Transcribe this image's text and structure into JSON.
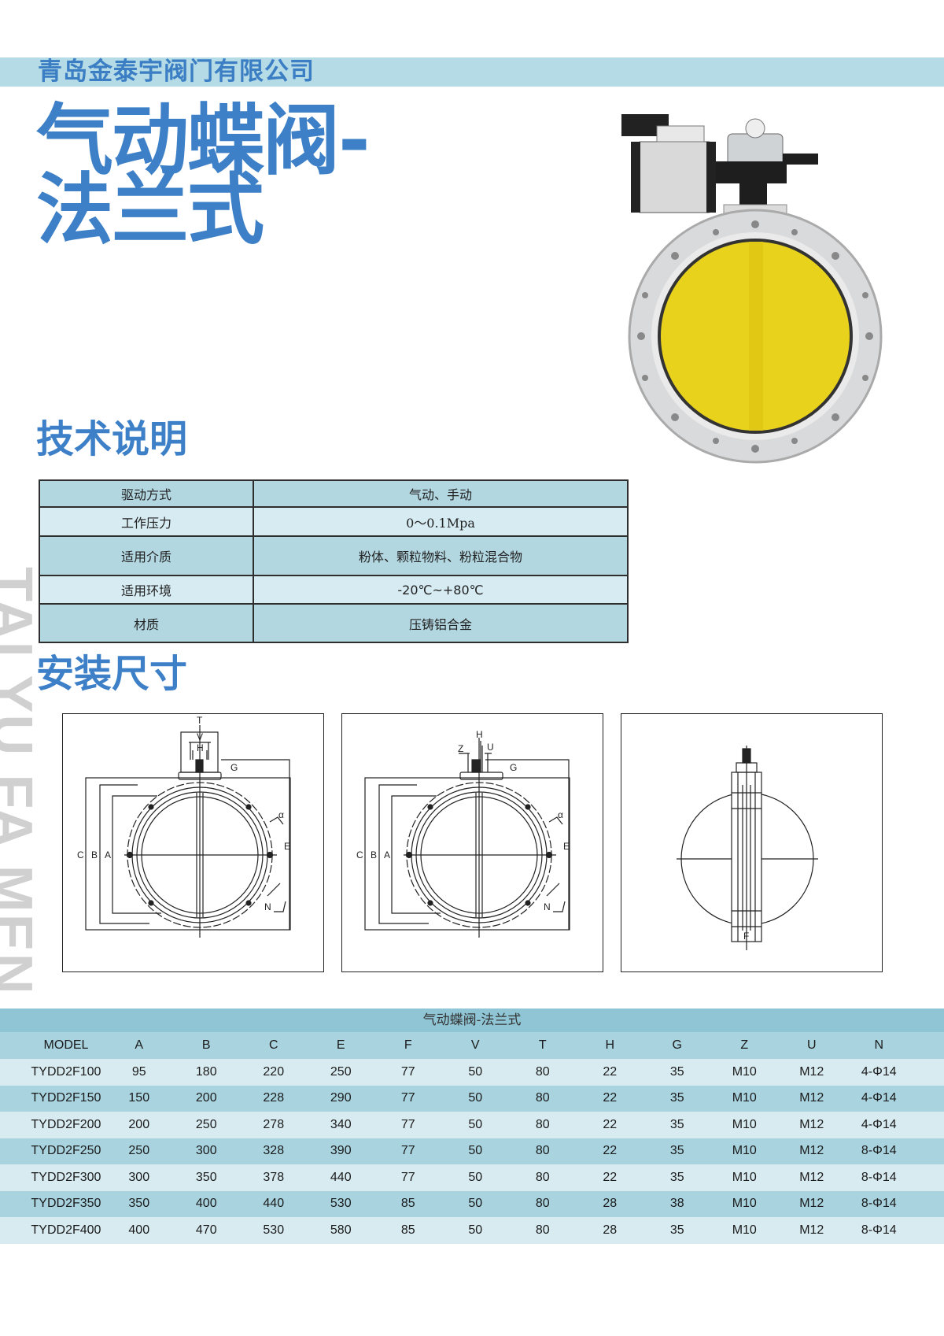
{
  "header": {
    "company": "青岛金泰宇阀门有限公司",
    "bar_color": "#b4dbe6",
    "brand_color": "#3d80c7"
  },
  "title": {
    "line1": "气动蝶阀-",
    "line2": "法兰式"
  },
  "watermark": "TAI YU FA MEN",
  "tech_section": {
    "heading": "技术说明",
    "rows": [
      {
        "label": "驱动方式",
        "value": "气动、手动"
      },
      {
        "label": "工作压力",
        "value": "0～0.1Mpa"
      },
      {
        "label": "适用介质",
        "value": "粉体、颗粒物料、粉粒混合物"
      },
      {
        "label": "适用环境",
        "value": "-20℃~+80℃"
      },
      {
        "label": "材质",
        "value": "压铸铝合金"
      }
    ]
  },
  "install_section": {
    "heading": "安装尺寸",
    "drawing1_labels": {
      "t": "T",
      "v": "V",
      "h": "H",
      "g": "G",
      "c": "C",
      "b": "B",
      "a": "A",
      "e": "E",
      "alpha": "α",
      "n": "N"
    },
    "drawing2_labels": {
      "h": "H",
      "z": "Z",
      "u": "U",
      "g": "G",
      "c": "C",
      "b": "B",
      "a": "A",
      "e": "E",
      "alpha": "α",
      "n": "N"
    },
    "drawing3_labels": {
      "f": "F"
    }
  },
  "dimension_table": {
    "title": "气动蝶阀-法兰式",
    "headers": [
      "MODEL",
      "A",
      "B",
      "C",
      "E",
      "F",
      "V",
      "T",
      "H",
      "G",
      "Z",
      "U",
      "N"
    ],
    "rows": [
      [
        "TYDD2F100",
        "95",
        "180",
        "220",
        "250",
        "77",
        "50",
        "80",
        "22",
        "35",
        "M10",
        "M12",
        "4-Φ14"
      ],
      [
        "TYDD2F150",
        "150",
        "200",
        "228",
        "290",
        "77",
        "50",
        "80",
        "22",
        "35",
        "M10",
        "M12",
        "4-Φ14"
      ],
      [
        "TYDD2F200",
        "200",
        "250",
        "278",
        "340",
        "77",
        "50",
        "80",
        "22",
        "35",
        "M10",
        "M12",
        "4-Φ14"
      ],
      [
        "TYDD2F250",
        "250",
        "300",
        "328",
        "390",
        "77",
        "50",
        "80",
        "22",
        "35",
        "M10",
        "M12",
        "8-Φ14"
      ],
      [
        "TYDD2F300",
        "300",
        "350",
        "378",
        "440",
        "77",
        "50",
        "80",
        "22",
        "35",
        "M10",
        "M12",
        "8-Φ14"
      ],
      [
        "TYDD2F350",
        "350",
        "400",
        "440",
        "530",
        "85",
        "50",
        "80",
        "28",
        "38",
        "M10",
        "M12",
        "8-Φ14"
      ],
      [
        "TYDD2F400",
        "400",
        "470",
        "530",
        "580",
        "85",
        "50",
        "80",
        "28",
        "35",
        "M10",
        "M12",
        "8-Φ14"
      ]
    ]
  }
}
